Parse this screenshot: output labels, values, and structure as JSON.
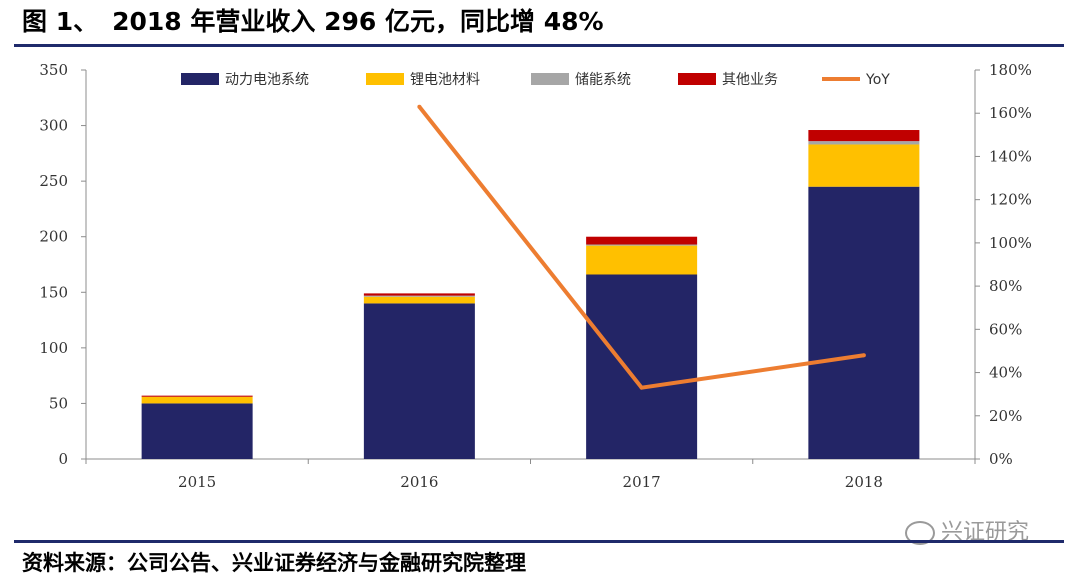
{
  "title": {
    "prefix": "图 1、",
    "text": "2018 年营业收入 296 亿元，同比增 48%"
  },
  "source": "资料来源：公司公告、兴业证券经济与金融研究院整理",
  "watermark": "兴证研究",
  "chart_data": {
    "type": "bar",
    "stacked": true,
    "categories": [
      "2015",
      "2016",
      "2017",
      "2018"
    ],
    "series": [
      {
        "name": "动力电池系统",
        "color": "#232566",
        "values": [
          50,
          140,
          166,
          245
        ]
      },
      {
        "name": "锂电池材料",
        "color": "#FFC000",
        "values": [
          6,
          6,
          26,
          38
        ]
      },
      {
        "name": "储能系统",
        "color": "#A6A6A6",
        "values": [
          0,
          1,
          1,
          3
        ]
      },
      {
        "name": "其他业务",
        "color": "#C00000",
        "values": [
          1,
          2,
          7,
          10
        ]
      }
    ],
    "line_series": {
      "name": "YoY",
      "color": "#ED7D31",
      "axis": "right",
      "values": [
        null,
        163,
        33,
        48
      ]
    },
    "ylim": [
      0,
      350
    ],
    "yticks": [
      "0",
      "50",
      "100",
      "150",
      "200",
      "250",
      "300",
      "350"
    ],
    "y2lim": [
      0,
      180
    ],
    "y2ticks": [
      "0%",
      "20%",
      "40%",
      "60%",
      "80%",
      "100%",
      "120%",
      "140%",
      "160%",
      "180%"
    ],
    "legend": "top",
    "grid": false
  }
}
